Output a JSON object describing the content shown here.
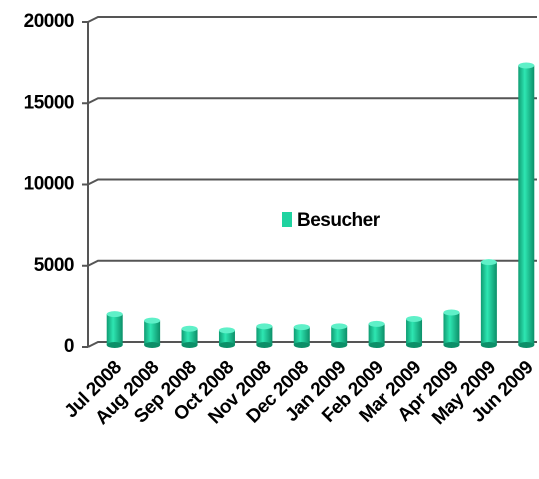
{
  "chart_data": {
    "type": "bar",
    "categories": [
      "Jul 2008",
      "Aug 2008",
      "Sep 2008",
      "Oct 2008",
      "Nov 2008",
      "Dec 2008",
      "Jan 2009",
      "Feb 2009",
      "Mar 2009",
      "Apr 2009",
      "May 2009",
      "Jun 2009"
    ],
    "series": [
      {
        "name": "Besucher",
        "color": "#1fd3a0",
        "values": [
          1900,
          1500,
          1000,
          900,
          1150,
          1100,
          1150,
          1300,
          1600,
          2000,
          5100,
          17200
        ]
      }
    ],
    "ylim": [
      0,
      20000
    ],
    "yticks": [
      0,
      5000,
      10000,
      15000,
      20000
    ],
    "grid": true,
    "legend": "center"
  }
}
